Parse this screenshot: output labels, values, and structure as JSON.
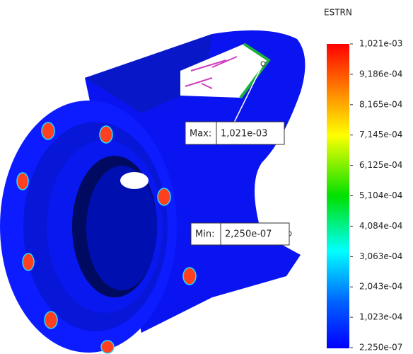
{
  "legend": {
    "title": "ESTRN",
    "labels": [
      "1,021e-03",
      "9,186e-04",
      "8,165e-04",
      "7,145e-04",
      "6,125e-04",
      "5,104e-04",
      "4,084e-04",
      "3,063e-04",
      "2,043e-04",
      "1,023e-04",
      "2,250e-07"
    ]
  },
  "max_probe": {
    "label": "Max:",
    "value": "1,021e-03"
  },
  "min_probe": {
    "label": "Min:",
    "value": "2,250e-07"
  }
}
